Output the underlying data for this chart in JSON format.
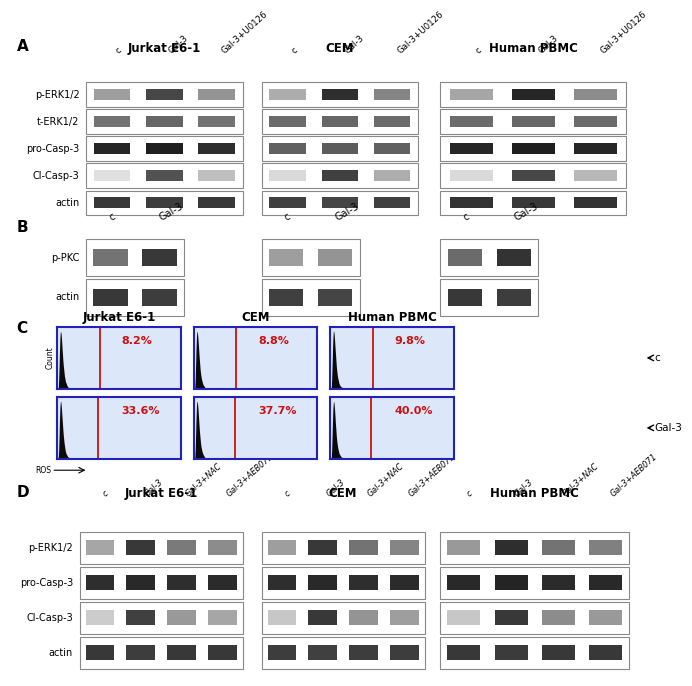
{
  "background_color": "#ffffff",
  "panel_A": {
    "label": "A",
    "cell_lines": [
      "Jurkat E6-1",
      "CEM",
      "Human PBMC"
    ],
    "col_labels": [
      "c",
      "Gal-3",
      "Gal-3+U0126"
    ],
    "row_labels": [
      "p-ERK1/2",
      "t-ERK1/2",
      "pro-Casp-3",
      "Cl-Casp-3",
      "actin"
    ]
  },
  "panel_B": {
    "label": "B",
    "col_labels": [
      "c",
      "Gal-3"
    ],
    "row_labels": [
      "p-PKC",
      "actin"
    ]
  },
  "panel_C": {
    "label": "C",
    "cell_lines": [
      "Jurkat E6-1",
      "CEM",
      "Human PBMC"
    ],
    "top_percentages": [
      "8.2%",
      "8.8%",
      "9.8%"
    ],
    "bottom_percentages": [
      "33.6%",
      "37.7%",
      "40.0%"
    ],
    "hist_bg": "#dce8fa",
    "hist_border": "#1a1aaa",
    "hist_fill": "#111111",
    "thresh_color": "#cc1111",
    "pct_color": "#cc1111"
  },
  "panel_D": {
    "label": "D",
    "cell_lines": [
      "Jurkat E6-1",
      "CEM",
      "Human PBMC"
    ],
    "col_labels": [
      "c",
      "Gal-3",
      "Gal-3+NAC",
      "Gal-3+AEB071"
    ],
    "row_labels": [
      "p-ERK1/2",
      "pro-Casp-3",
      "Cl-Casp-3",
      "actin"
    ]
  }
}
